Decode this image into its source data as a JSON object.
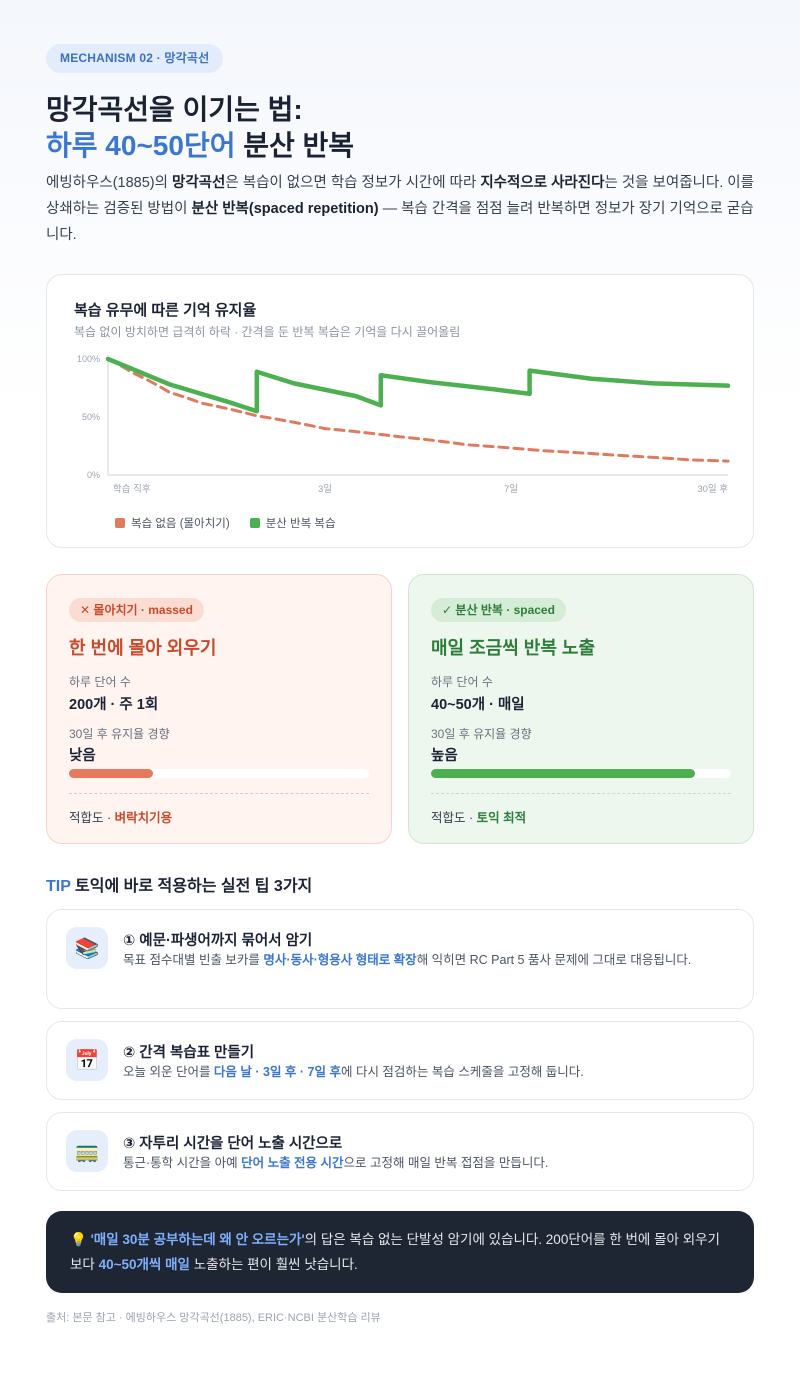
{
  "badge": "MECHANISM 02 · 망각곡선",
  "heading": {
    "line1": "망각곡선을 이기는 법:",
    "line2_blue": "하루 40~50단어",
    "line2_rest": " 분산 반복"
  },
  "intro": {
    "t1": "에빙하우스(1885)의 ",
    "b1": "망각곡선",
    "t2": "은 복습이 없으면 학습 정보가 시간에 따라 ",
    "b2": "지수적으로 사라진다",
    "t3": "는 것을 보여줍니다. 이를 상쇄하는 검증된 방법이 ",
    "b3": "분산 반복(spaced repetition)",
    "t4": " — 복습 간격을 점점 늘려 반복하면 정보가 장기 기억으로 굳습니다."
  },
  "chart_data": {
    "type": "line",
    "title": "복습 유무에 따른 기억 유지율",
    "subtitle": "복습 없이 방치하면 급격히 하락 · 간격을 둔 반복 복습은 기억을 다시 끌어올림",
    "y_ticks": [
      "100%",
      "50%",
      "0%"
    ],
    "ylim": [
      0,
      100
    ],
    "x_ticks": [
      "학습 직후",
      "3일",
      "7일",
      "30일 후"
    ],
    "series": [
      {
        "name": "복습 없음 (몰아치기)",
        "color": "#e07a5f",
        "style": "dashed",
        "points": [
          [
            0,
            100
          ],
          [
            4,
            88
          ],
          [
            10,
            71
          ],
          [
            15,
            62
          ],
          [
            24,
            51
          ],
          [
            35,
            40
          ],
          [
            47,
            33
          ],
          [
            58,
            26
          ],
          [
            70,
            21
          ],
          [
            82,
            17
          ],
          [
            94,
            13
          ],
          [
            100,
            12
          ]
        ]
      },
      {
        "name": "분산 반복 복습",
        "color": "#4caf50",
        "style": "solid",
        "points": [
          [
            0,
            100
          ],
          [
            10,
            78
          ],
          [
            20,
            62
          ],
          [
            24,
            55
          ],
          [
            24,
            89
          ],
          [
            30,
            79
          ],
          [
            40,
            68
          ],
          [
            44,
            60
          ],
          [
            44,
            86
          ],
          [
            52,
            80
          ],
          [
            62,
            74
          ],
          [
            68,
            70
          ],
          [
            68,
            90
          ],
          [
            78,
            83
          ],
          [
            88,
            79
          ],
          [
            100,
            77
          ]
        ]
      }
    ]
  },
  "massed": {
    "pill_icon": "✕",
    "pill": "몰아치기 · massed",
    "title": "한 번에 몰아 외우기",
    "words_label": "하루 단어 수",
    "words_value": "200개 · 주 1회",
    "trend_label": "30일 후 유지율 경향",
    "trend_value": "낮음",
    "retention_fraction": 0.28,
    "fit_label": "적합도 · ",
    "fit_value": "벼락치기용"
  },
  "spaced": {
    "pill_icon": "✓",
    "pill": "분산 반복 · spaced",
    "title": "매일 조금씩 반복 노출",
    "words_label": "하루 단어 수",
    "words_value": "40~50개 · 매일",
    "trend_label": "30일 후 유지율 경향",
    "trend_value": "높음",
    "retention_fraction": 0.88,
    "fit_label": "적합도 · ",
    "fit_value": "토익 최적"
  },
  "tips_heading": {
    "tag": "TIP",
    "text": " 토익에 바로 적용하는 실전 팁 3가지"
  },
  "tips": [
    {
      "icon": "books-icon",
      "icon_glyph": "📚",
      "title": "① 예문·파생어까지 묶어서 암기",
      "d1": "목표 점수대별 빈출 보카를 ",
      "db": "명사·동사·형용사 형태로 확장",
      "d2": "해 익히면 RC Part 5 품사 문제에 그대로 대응됩니다."
    },
    {
      "icon": "calendar-icon",
      "icon_glyph": "📅",
      "title": "② 간격 복습표 만들기",
      "d1": "오늘 외운 단어를 ",
      "db": "다음 날 · 3일 후 · 7일 후",
      "d2": "에 다시 점검하는 복습 스케줄을 고정해 둡니다."
    },
    {
      "icon": "train-icon",
      "icon_glyph": "🚃",
      "title": "③ 자투리 시간을 단어 노출 시간으로",
      "d1": "통근·통학 시간을 아예 ",
      "db": "단어 노출 전용 시간",
      "d2": "으로 고정해 매일 반복 접점을 만듭니다."
    }
  ],
  "callout": {
    "icon": "💡",
    "b1": "'매일 30분 공부하는데 왜 안 오르는가'",
    "t1": "의 답은 복습 없는 단발성 암기에 있습니다. 200단어를 한 번에 몰아 외우기보다 ",
    "b2": "40~50개씩 매일",
    "t2": " 노출하는 편이 훨씬 낫습니다."
  },
  "source": "출처: 본문 참고 · 에빙하우스 망각곡선(1885), ERIC·NCBI 분산학습 리뷰"
}
